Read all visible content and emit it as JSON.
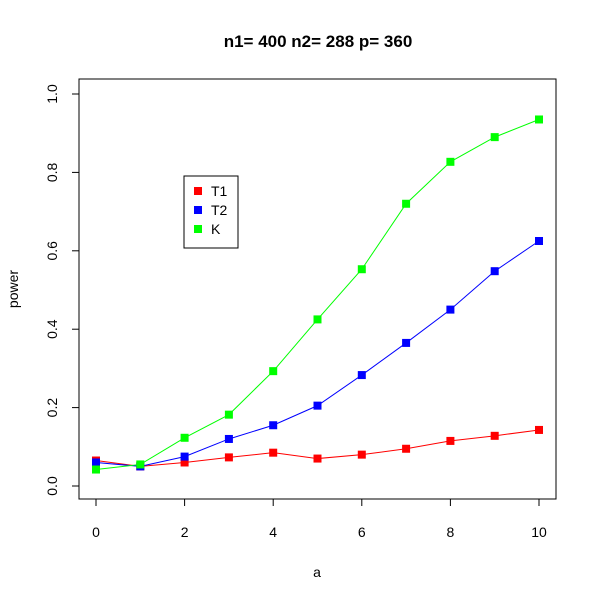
{
  "chart_data": {
    "type": "line",
    "title": "n1= 400 n2= 288 p= 360",
    "xlabel": "a",
    "ylabel": "power",
    "xlim": [
      0,
      10
    ],
    "ylim": [
      0,
      1
    ],
    "x_ticks": [
      0,
      2,
      4,
      6,
      8,
      10
    ],
    "y_ticks": [
      0.0,
      0.2,
      0.4,
      0.6,
      0.8,
      1.0
    ],
    "x_tick_labels": [
      "0",
      "2",
      "4",
      "6",
      "8",
      "10"
    ],
    "y_tick_labels": [
      "0.0",
      "0.2",
      "0.4",
      "0.6",
      "0.8",
      "1.0"
    ],
    "x": [
      0,
      1,
      2,
      3,
      4,
      5,
      6,
      7,
      8,
      9,
      10
    ],
    "series": [
      {
        "name": "T1",
        "color": "#ff0000",
        "values": [
          0.065,
          0.05,
          0.06,
          0.073,
          0.085,
          0.07,
          0.08,
          0.095,
          0.115,
          0.128,
          0.143
        ]
      },
      {
        "name": "T2",
        "color": "#0000ff",
        "values": [
          0.06,
          0.05,
          0.075,
          0.12,
          0.155,
          0.205,
          0.283,
          0.365,
          0.45,
          0.548,
          0.625
        ]
      },
      {
        "name": "K",
        "color": "#00ff00",
        "values": [
          0.042,
          0.055,
          0.123,
          0.182,
          0.293,
          0.425,
          0.553,
          0.72,
          0.827,
          0.89,
          0.935
        ]
      }
    ],
    "grid": false,
    "legend_position": "upper-left",
    "marker": "square"
  }
}
